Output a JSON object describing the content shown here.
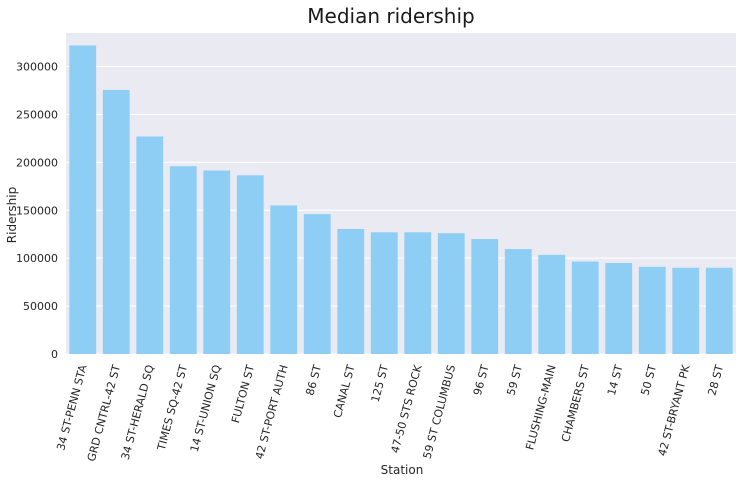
{
  "chart_data": {
    "type": "bar",
    "title": "Median ridership",
    "xlabel": "Station",
    "ylabel": "Ridership",
    "categories": [
      "34 ST-PENN STA",
      "GRD CNTRL-42 ST",
      "34 ST-HERALD SQ",
      "TIMES SQ-42 ST",
      "14 ST-UNION SQ",
      "FULTON ST",
      "42 ST-PORT AUTH",
      "86 ST",
      "CANAL ST",
      "125 ST",
      "47-50 STS ROCK",
      "59 ST COLUMBUS",
      "96 ST",
      "59 ST",
      "FLUSHING-MAIN",
      "CHAMBERS ST",
      "14 ST",
      "50 ST",
      "42 ST-BRYANT PK",
      "28 ST"
    ],
    "values": [
      322000,
      275500,
      227000,
      196000,
      191500,
      186500,
      155000,
      146000,
      130500,
      127000,
      127000,
      126000,
      120000,
      109500,
      103500,
      96500,
      95000,
      91000,
      90000,
      90000
    ],
    "ylim": [
      0,
      335000
    ],
    "yticks": [
      0,
      50000,
      100000,
      150000,
      200000,
      250000,
      300000
    ],
    "grid": true,
    "bar_color": "#8ecdf4",
    "background_color": "#eaeaf2"
  }
}
